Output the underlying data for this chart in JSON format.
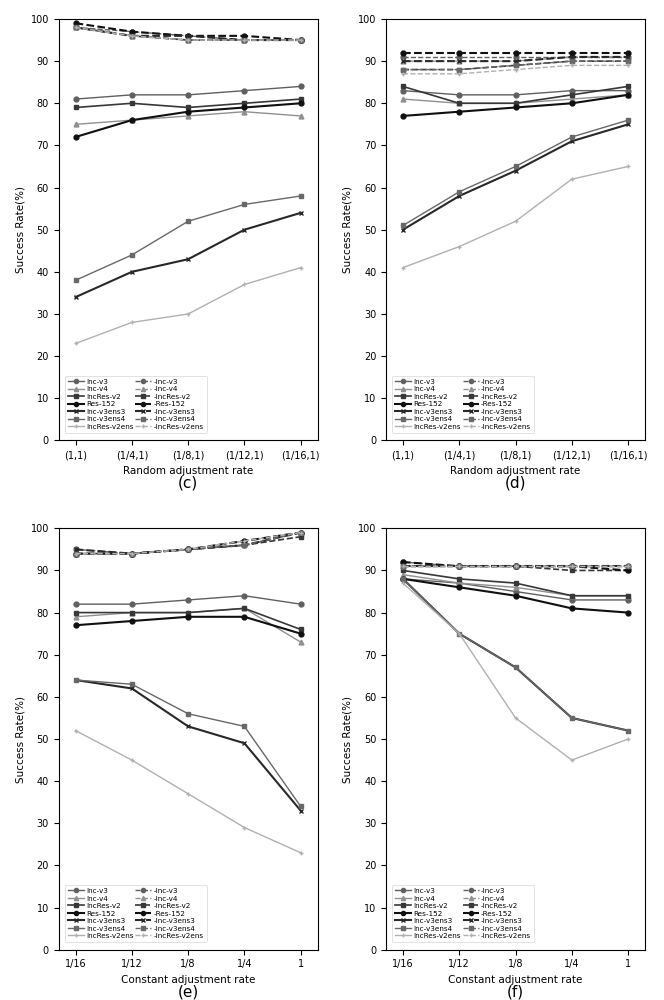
{
  "plot_c": {
    "xlabel": "Random adjustment rate",
    "ylabel": "Success Rate(%)",
    "xtick_labels": [
      "(1,1)",
      "(1/4,1)",
      "(1/8,1)",
      "(1/12,1)",
      "(1/16,1)"
    ],
    "ylim": [
      0,
      100
    ],
    "solid_lines": {
      "Inc-v3": [
        81,
        82,
        82,
        83,
        84
      ],
      "Inc-v4": [
        75,
        76,
        77,
        78,
        77
      ],
      "IncRes-v2": [
        79,
        80,
        79,
        80,
        81
      ],
      "Res-152": [
        72,
        76,
        78,
        79,
        80
      ],
      "Inc-v3ens3": [
        34,
        40,
        43,
        50,
        54
      ],
      "Inc-v3ens4": [
        38,
        44,
        52,
        56,
        58
      ],
      "IncRes-v2ens": [
        23,
        28,
        30,
        37,
        41
      ]
    },
    "dashed_lines": {
      "-Inc-v3": [
        98,
        97,
        96,
        95,
        95
      ],
      "-Inc-v4": [
        98,
        96,
        95,
        95,
        95
      ],
      "-IncRes-v2": [
        98,
        96,
        95,
        95,
        95
      ],
      "-Res-152": [
        99,
        97,
        96,
        96,
        95
      ],
      "-Inc-v3ens3": [
        98,
        96,
        96,
        95,
        95
      ],
      "-Inc-v3ens4": [
        98,
        96,
        95,
        95,
        95
      ],
      "-IncRes-v2ens": [
        98,
        96,
        95,
        95,
        95
      ]
    }
  },
  "plot_d": {
    "xlabel": "Random adjustment rate",
    "ylabel": "Success Rate(%)",
    "xtick_labels": [
      "(1,1)",
      "(1/4,1)",
      "(1/8,1)",
      "(1/12,1)",
      "(1/16,1)"
    ],
    "ylim": [
      0,
      100
    ],
    "solid_lines": {
      "Inc-v3": [
        83,
        82,
        82,
        83,
        83
      ],
      "Inc-v4": [
        81,
        80,
        80,
        81,
        82
      ],
      "IncRes-v2": [
        84,
        80,
        80,
        82,
        84
      ],
      "Res-152": [
        77,
        78,
        79,
        80,
        82
      ],
      "Inc-v3ens3": [
        50,
        58,
        64,
        71,
        75
      ],
      "Inc-v3ens4": [
        51,
        59,
        65,
        72,
        76
      ],
      "IncRes-v2ens": [
        41,
        46,
        52,
        62,
        65
      ]
    },
    "dashed_lines": {
      "-Inc-v3": [
        91,
        91,
        91,
        91,
        91
      ],
      "-Inc-v4": [
        90,
        90,
        90,
        91,
        91
      ],
      "-IncRes-v2": [
        88,
        88,
        89,
        90,
        90
      ],
      "-Res-152": [
        92,
        92,
        92,
        92,
        92
      ],
      "-Inc-v3ens3": [
        90,
        90,
        90,
        91,
        91
      ],
      "-Inc-v3ens4": [
        88,
        88,
        89,
        90,
        90
      ],
      "-IncRes-v2ens": [
        87,
        87,
        88,
        89,
        89
      ]
    }
  },
  "plot_e": {
    "xlabel": "Constant adjustment rate",
    "ylabel": "Success Rate(%)",
    "xtick_labels": [
      "1/16",
      "1/12",
      "1/8",
      "1/4",
      "1"
    ],
    "ylim": [
      0,
      100
    ],
    "solid_lines": {
      "Inc-v3": [
        82,
        82,
        83,
        84,
        82
      ],
      "Inc-v4": [
        79,
        80,
        80,
        81,
        73
      ],
      "IncRes-v2": [
        80,
        80,
        80,
        81,
        76
      ],
      "Res-152": [
        77,
        78,
        79,
        79,
        75
      ],
      "Inc-v3ens3": [
        64,
        62,
        53,
        49,
        33
      ],
      "Inc-v3ens4": [
        64,
        63,
        56,
        53,
        34
      ],
      "IncRes-v2ens": [
        52,
        45,
        37,
        29,
        23
      ]
    },
    "dashed_lines": {
      "-Inc-v3": [
        95,
        94,
        95,
        96,
        99
      ],
      "-Inc-v4": [
        94,
        94,
        95,
        97,
        99
      ],
      "-IncRes-v2": [
        94,
        94,
        95,
        96,
        98
      ],
      "-Res-152": [
        94,
        94,
        95,
        97,
        99
      ],
      "-Inc-v3ens3": [
        95,
        94,
        95,
        96,
        99
      ],
      "-Inc-v3ens4": [
        94,
        94,
        95,
        96,
        99
      ],
      "-IncRes-v2ens": [
        94,
        94,
        95,
        97,
        99
      ]
    }
  },
  "plot_f": {
    "xlabel": "Constant adjustment rate",
    "ylabel": "Success Rate(%)",
    "xtick_labels": [
      "1/16",
      "1/12",
      "1/8",
      "1/4",
      "1"
    ],
    "ylim": [
      0,
      100
    ],
    "solid_lines": {
      "Inc-v3": [
        88,
        87,
        85,
        83,
        83
      ],
      "Inc-v4": [
        89,
        87,
        86,
        84,
        84
      ],
      "IncRes-v2": [
        90,
        88,
        87,
        84,
        84
      ],
      "Res-152": [
        88,
        86,
        84,
        81,
        80
      ],
      "Inc-v3ens3": [
        88,
        75,
        67,
        55,
        52
      ],
      "Inc-v3ens4": [
        88,
        75,
        67,
        55,
        52
      ],
      "IncRes-v2ens": [
        87,
        75,
        55,
        45,
        50
      ]
    },
    "dashed_lines": {
      "-Inc-v3": [
        92,
        91,
        91,
        91,
        91
      ],
      "-Inc-v4": [
        91,
        91,
        91,
        91,
        91
      ],
      "-IncRes-v2": [
        91,
        91,
        91,
        90,
        90
      ],
      "-Res-152": [
        92,
        91,
        91,
        91,
        90
      ],
      "-Inc-v3ens3": [
        91,
        91,
        91,
        91,
        91
      ],
      "-Inc-v3ens4": [
        91,
        91,
        91,
        91,
        91
      ],
      "-IncRes-v2ens": [
        91,
        91,
        91,
        91,
        91
      ]
    }
  },
  "colors": {
    "Inc-v3": "#606060",
    "Inc-v4": "#909090",
    "IncRes-v2": "#383838",
    "Res-152": "#101010",
    "Inc-v3ens3": "#282828",
    "Inc-v3ens4": "#686868",
    "IncRes-v2ens": "#b0b0b0"
  },
  "markers": {
    "Inc-v3": "o",
    "Inc-v4": "^",
    "IncRes-v2": "s",
    "Res-152": "o",
    "Inc-v3ens3": "x",
    "Inc-v3ens4": "s",
    "IncRes-v2ens": "+"
  },
  "linewidths": {
    "Inc-v3": 1.0,
    "Inc-v4": 1.0,
    "IncRes-v2": 1.2,
    "Res-152": 1.5,
    "Inc-v3ens3": 1.5,
    "Inc-v3ens4": 1.0,
    "IncRes-v2ens": 1.0
  },
  "subtitles": [
    "(c)",
    "(d)",
    "(e)",
    "(f)"
  ]
}
